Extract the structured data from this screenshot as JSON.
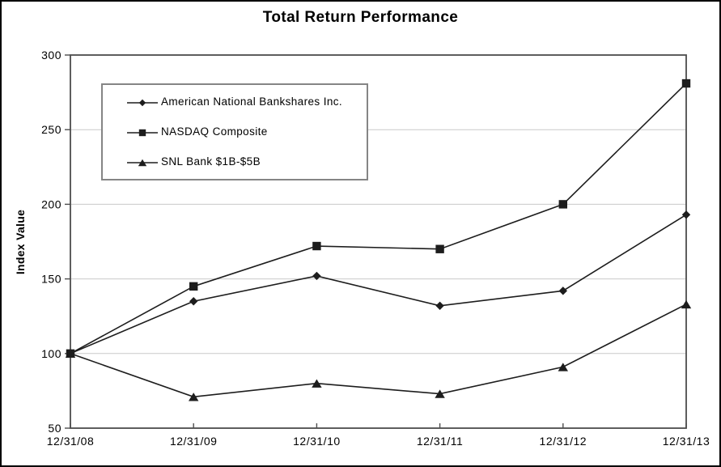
{
  "chart_data": {
    "type": "line",
    "title": "Total Return Performance",
    "ylabel": "Index Value",
    "xlabel": "",
    "categories": [
      "12/31/08",
      "12/31/09",
      "12/31/10",
      "12/31/11",
      "12/31/12",
      "12/31/13"
    ],
    "series": [
      {
        "name": "American National Bankshares Inc.",
        "marker": "diamond",
        "values": [
          100,
          135,
          152,
          132,
          142,
          193
        ]
      },
      {
        "name": "NASDAQ Composite",
        "marker": "square",
        "values": [
          100,
          145,
          172,
          170,
          200,
          281
        ]
      },
      {
        "name": "SNL Bank $1B-$5B",
        "marker": "triangle",
        "values": [
          100,
          71,
          80,
          73,
          91,
          133
        ]
      }
    ],
    "ylim": [
      50,
      300
    ],
    "y_ticks": [
      50,
      100,
      150,
      200,
      250,
      300
    ],
    "grid": "horizontal",
    "legend_position": "upper-left-inside",
    "colors": {
      "line": "#1d1d1d",
      "grid": "#c9c9c9",
      "plot_border": "#4d4d4d",
      "text": "#000000",
      "legend_border": "#858585",
      "background": "#ffffff",
      "outer_border": "#000000"
    }
  }
}
